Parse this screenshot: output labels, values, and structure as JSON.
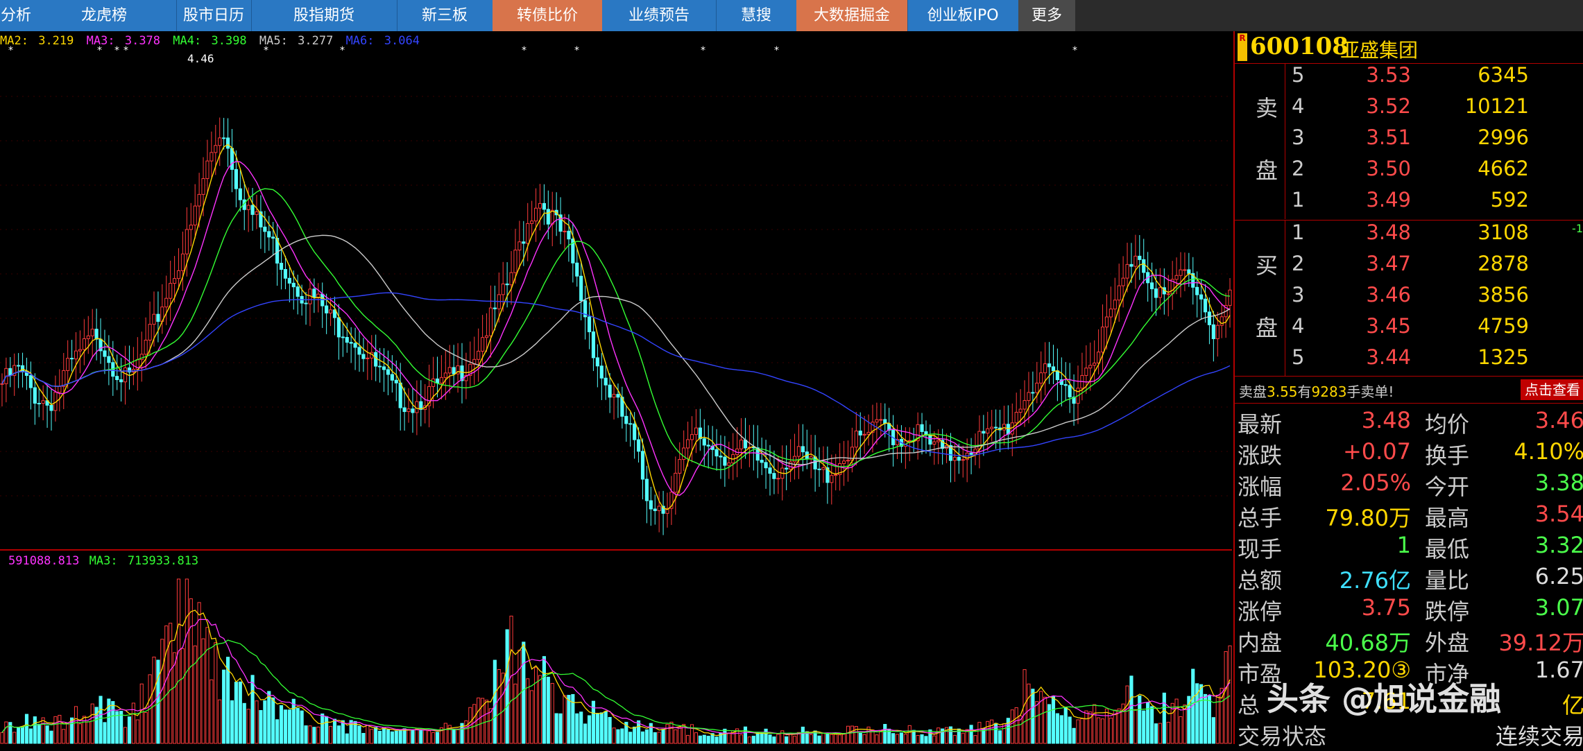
{
  "nav": {
    "tabs": [
      {
        "label": "分析",
        "color": "blue"
      },
      {
        "label": "龙虎榜",
        "color": "blue"
      },
      {
        "label": "股市日历",
        "color": "blue"
      },
      {
        "label": "股指期货",
        "color": "blue"
      },
      {
        "label": "新三板",
        "color": "blue"
      },
      {
        "label": "转债比价",
        "color": "orange"
      },
      {
        "label": "业绩预告",
        "color": "blue"
      },
      {
        "label": "慧搜",
        "color": "blue"
      },
      {
        "label": "大数据掘金",
        "color": "orange"
      },
      {
        "label": "创业板IPO",
        "color": "blue"
      },
      {
        "label": "更多",
        "color": "dark"
      }
    ]
  },
  "price_indicators": {
    "ma2": {
      "label": "MA2:",
      "value": "3.219",
      "color": "#ffd700"
    },
    "ma3": {
      "label": "MA3:",
      "value": "3.378",
      "color": "#ff33ff"
    },
    "ma4": {
      "label": "MA4:",
      "value": "3.398",
      "color": "#33ff33"
    },
    "ma5": {
      "label": "MA5:",
      "value": "3.277",
      "color": "#cccccc"
    },
    "ma6": {
      "label": "MA6:",
      "value": "3.064",
      "color": "#3344ff"
    }
  },
  "volume_indicators": {
    "ma2_value": "591088.813",
    "ma3": {
      "label": "MA3:",
      "value": "713933.813"
    }
  },
  "chart_data": [
    {
      "type": "candlestick",
      "title": "",
      "annotation_high": "4.46",
      "ylim": [
        2.3,
        4.6
      ],
      "closes": [
        3.05,
        3.12,
        3.0,
        2.95,
        3.1,
        3.2,
        3.3,
        3.15,
        3.05,
        3.2,
        3.4,
        3.6,
        3.8,
        4.1,
        4.3,
        4.0,
        3.85,
        3.75,
        3.6,
        3.5,
        3.45,
        3.35,
        3.3,
        3.2,
        3.1,
        3.0,
        2.95,
        3.0,
        3.05,
        3.1,
        3.2,
        3.35,
        3.5,
        3.75,
        3.95,
        3.85,
        3.7,
        3.4,
        3.1,
        2.95,
        2.8,
        2.5,
        2.45,
        2.65,
        2.8,
        2.75,
        2.7,
        2.72,
        2.68,
        2.62,
        2.7,
        2.68,
        2.6,
        2.65,
        2.75,
        2.8,
        2.85,
        2.78,
        2.82,
        2.75,
        2.7,
        2.72,
        2.78,
        2.8,
        2.85,
        3.0,
        3.1,
        3.05,
        3.0,
        3.15,
        3.3,
        3.5,
        3.7,
        3.55,
        3.45,
        3.6,
        3.5,
        3.3,
        3.45
      ],
      "volume_ylim": [
        0,
        1
      ],
      "volumes": [
        0.12,
        0.1,
        0.14,
        0.1,
        0.16,
        0.2,
        0.22,
        0.18,
        0.15,
        0.3,
        0.45,
        0.7,
        1.0,
        0.6,
        0.45,
        0.35,
        0.3,
        0.25,
        0.2,
        0.18,
        0.15,
        0.12,
        0.1,
        0.1,
        0.08,
        0.08,
        0.07,
        0.08,
        0.1,
        0.12,
        0.2,
        0.3,
        0.55,
        0.6,
        0.45,
        0.3,
        0.22,
        0.2,
        0.16,
        0.14,
        0.12,
        0.1,
        0.1,
        0.08,
        0.08,
        0.07,
        0.06,
        0.07,
        0.07,
        0.06,
        0.06,
        0.07,
        0.06,
        0.06,
        0.08,
        0.08,
        0.1,
        0.08,
        0.08,
        0.07,
        0.07,
        0.07,
        0.09,
        0.1,
        0.12,
        0.35,
        0.25,
        0.2,
        0.15,
        0.18,
        0.2,
        0.26,
        0.3,
        0.2,
        0.22,
        0.28,
        0.35,
        0.25,
        0.45
      ],
      "series": [
        {
          "name": "MA2",
          "color": "#ffd700"
        },
        {
          "name": "MA3",
          "color": "#ff33ff"
        },
        {
          "name": "MA4",
          "color": "#33ff33"
        },
        {
          "name": "MA5",
          "color": "#cccccc"
        },
        {
          "name": "MA6",
          "color": "#3344ff"
        }
      ]
    }
  ],
  "stock": {
    "code": "600108",
    "name": "亚盛集团",
    "badge": "R"
  },
  "order_book": {
    "sell_label_1": "卖",
    "sell_label_2": "盘",
    "buy_label_1": "买",
    "buy_label_2": "盘",
    "sell": [
      {
        "level": "5",
        "price": "3.53",
        "volume": "6345"
      },
      {
        "level": "4",
        "price": "3.52",
        "volume": "10121"
      },
      {
        "level": "3",
        "price": "3.51",
        "volume": "2996"
      },
      {
        "level": "2",
        "price": "3.50",
        "volume": "4662"
      },
      {
        "level": "1",
        "price": "3.49",
        "volume": "592"
      }
    ],
    "buy": [
      {
        "level": "1",
        "price": "3.48",
        "volume": "3108"
      },
      {
        "level": "2",
        "price": "3.47",
        "volume": "2878"
      },
      {
        "level": "3",
        "price": "3.46",
        "volume": "3856"
      },
      {
        "level": "4",
        "price": "3.45",
        "volume": "4759"
      },
      {
        "level": "5",
        "price": "3.44",
        "volume": "1325"
      }
    ],
    "buy1_change": "-1"
  },
  "big_order": {
    "prefix": "卖盘",
    "price": "3.55",
    "mid": "有",
    "count": "9283",
    "suffix": "手卖单!",
    "button": "点击查看"
  },
  "stats": [
    {
      "k1": "最新",
      "v1": "3.48",
      "c1": "red",
      "k2": "均价",
      "v2": "3.46",
      "c2": "red"
    },
    {
      "k1": "涨跌",
      "v1": "+0.07",
      "c1": "red",
      "k2": "换手",
      "v2": "4.10%",
      "c2": "yellow"
    },
    {
      "k1": "涨幅",
      "v1": "2.05%",
      "c1": "red",
      "k2": "今开",
      "v2": "3.38",
      "c2": "green"
    },
    {
      "k1": "总手",
      "v1": "79.80万",
      "c1": "yellow",
      "k2": "最高",
      "v2": "3.54",
      "c2": "red"
    },
    {
      "k1": "现手",
      "v1": "1",
      "c1": "green",
      "k2": "最低",
      "v2": "3.32",
      "c2": "green"
    },
    {
      "k1": "总额",
      "v1": "2.76亿",
      "c1": "cyan",
      "k2": "量比",
      "v2": "6.25",
      "c2": "white"
    },
    {
      "k1": "涨停",
      "v1": "3.75",
      "c1": "red",
      "k2": "跌停",
      "v2": "3.07",
      "c2": "green"
    },
    {
      "k1": "内盘",
      "v1": "40.68万",
      "c1": "green",
      "k2": "外盘",
      "v2": "39.12万",
      "c2": "red"
    },
    {
      "k1": "市盈",
      "v1": "103.20③",
      "c1": "yellow",
      "k2": "市净",
      "v2": "1.67",
      "c2": "white"
    },
    {
      "k1": "总",
      "v1": "7.61",
      "c1": "yellow",
      "k2": "",
      "v2": "亿",
      "c2": "yellow"
    },
    {
      "k1": "交易状态",
      "v1": "",
      "c1": "white",
      "k2": "",
      "v2": "连续交易",
      "c2": "white"
    }
  ],
  "watermark": "头条 @旭说金融"
}
